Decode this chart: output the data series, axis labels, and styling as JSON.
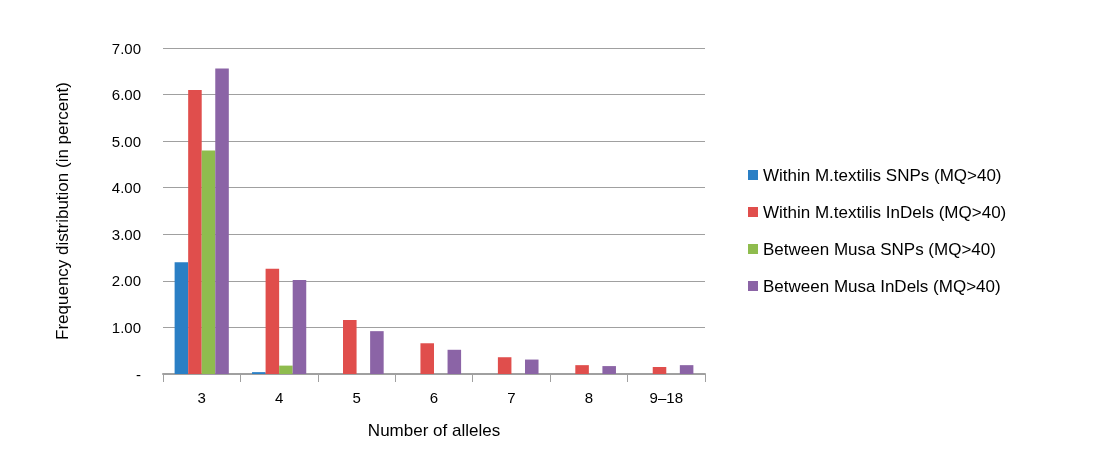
{
  "chart_data": {
    "type": "bar",
    "xlabel": "Number of alleles",
    "ylabel": "Frequency distribution (in percent)",
    "categories": [
      "3",
      "4",
      "5",
      "6",
      "7",
      "8",
      "9–18"
    ],
    "series": [
      {
        "name": "Within M.textilis SNPs (MQ>40)",
        "color": "#2a7fc5",
        "values": [
          2.4,
          0.04,
          0,
          0,
          0,
          0,
          0
        ]
      },
      {
        "name": "Within M.textilis InDels (MQ>40)",
        "color": "#e04e4c",
        "values": [
          6.1,
          2.26,
          1.16,
          0.66,
          0.36,
          0.19,
          0.15
        ]
      },
      {
        "name": "Between Musa SNPs (MQ>40)",
        "color": "#8fbc4e",
        "values": [
          4.8,
          0.18,
          0,
          0,
          0,
          0,
          0
        ]
      },
      {
        "name": "Between Musa InDels (MQ>40)",
        "color": "#8b64a6",
        "values": [
          6.56,
          2.02,
          0.92,
          0.52,
          0.31,
          0.17,
          0.19
        ]
      }
    ],
    "ylim": [
      0,
      7
    ],
    "yticks": [
      {
        "value": 0,
        "label": "-"
      },
      {
        "value": 1,
        "label": "1.00"
      },
      {
        "value": 2,
        "label": "2.00"
      },
      {
        "value": 3,
        "label": "3.00"
      },
      {
        "value": 4,
        "label": "4.00"
      },
      {
        "value": 5,
        "label": "5.00"
      },
      {
        "value": 6,
        "label": "6.00"
      },
      {
        "value": 7,
        "label": "7.00"
      }
    ],
    "grid": "y",
    "legend": "right"
  }
}
